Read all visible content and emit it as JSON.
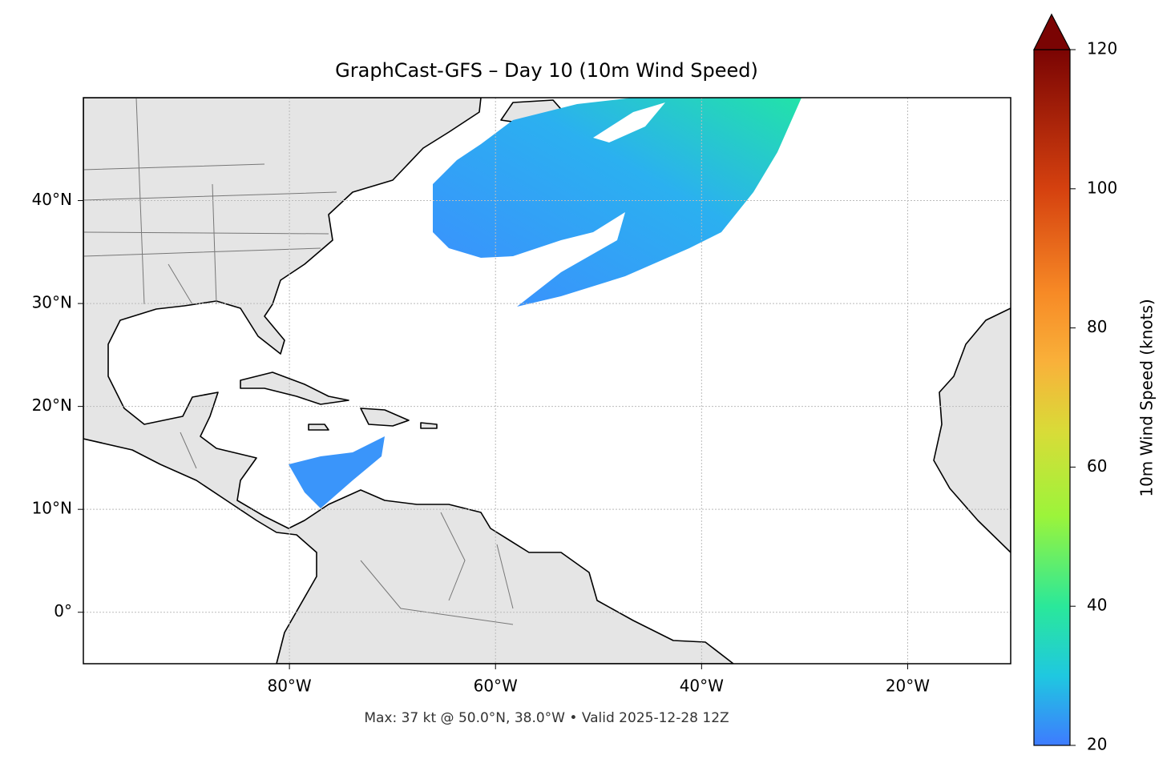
{
  "chart_data": {
    "type": "map",
    "title": "GraphCast-GFS – Day 10 (10m Wind Speed)",
    "annotation": "Max: 37 kt @ 50.0°N, 38.0°W • Valid 2025-12-28 12Z",
    "xlim": [
      -100,
      -10
    ],
    "ylim": [
      -5,
      50
    ],
    "xticks": [
      {
        "value": -80,
        "label": "80°W"
      },
      {
        "value": -60,
        "label": "60°W"
      },
      {
        "value": -40,
        "label": "40°W"
      },
      {
        "value": -20,
        "label": "20°W"
      }
    ],
    "yticks": [
      {
        "value": 0,
        "label": "0°"
      },
      {
        "value": 10,
        "label": "10°N"
      },
      {
        "value": 20,
        "label": "20°N"
      },
      {
        "value": 30,
        "label": "30°N"
      },
      {
        "value": 40,
        "label": "40°N"
      }
    ],
    "grid": true,
    "colorbar": {
      "label": "10m Wind Speed (knots)",
      "lim": [
        20,
        120
      ],
      "ticks": [
        20,
        40,
        60,
        80,
        100,
        120
      ]
    }
  }
}
